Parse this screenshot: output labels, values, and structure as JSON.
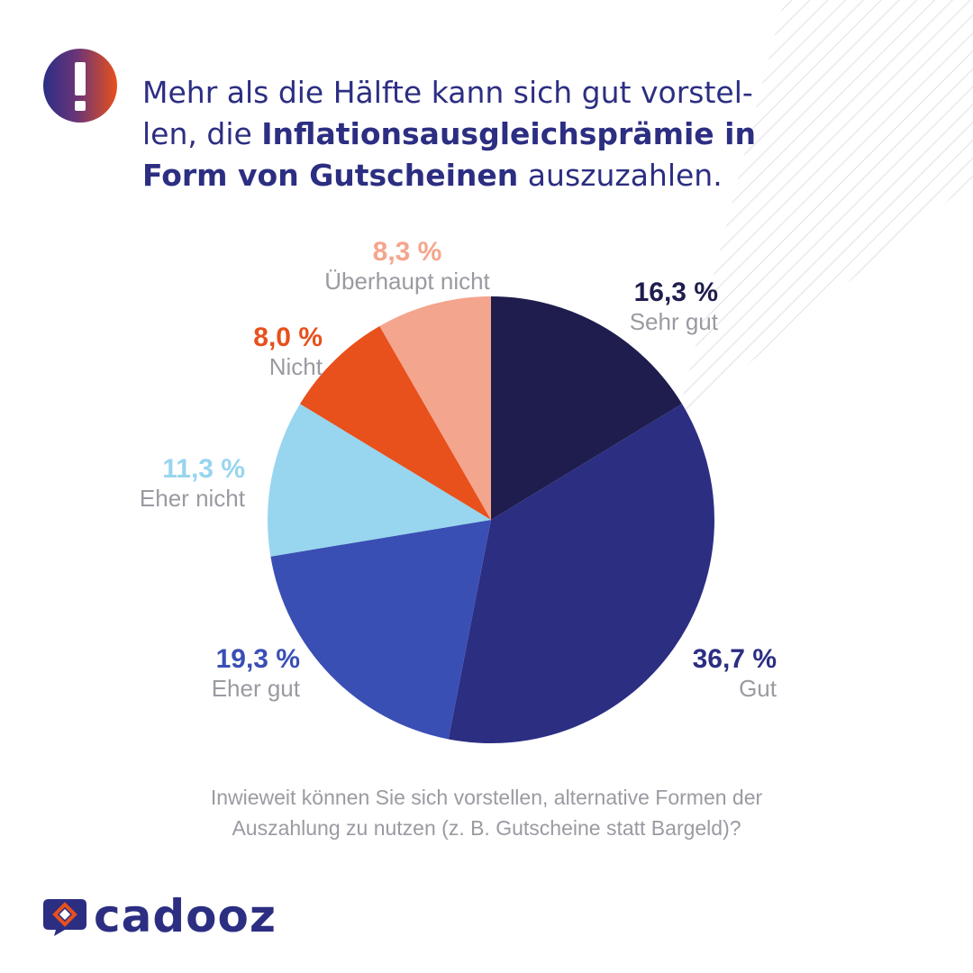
{
  "headline": {
    "part1": "Mehr als die Hälfte kann sich gut vorstel-",
    "part2": "len, die ",
    "bold": "Inflationsausgleichsprämie in Form von Gutscheinen",
    "part3": " auszuzahlen."
  },
  "question": {
    "line1": "Inwieweit können Sie sich vorstellen, alternative Formen der",
    "line2": "Auszahlung zu nutzen (z. B. Gutscheine statt Bargeld)?"
  },
  "brand": {
    "name": "cadooz"
  },
  "icons": {
    "badge": "exclamation-icon",
    "logo": "cadooz-logo-icon"
  },
  "colors": {
    "accent_navy": "#2c2e82",
    "accent_orange": "#e8501c",
    "label_gray": "#9a9aa2"
  },
  "chart_data": {
    "type": "pie",
    "unit": "%",
    "start": "12 o'clock, clockwise",
    "slices": [
      {
        "label": "Sehr gut",
        "value": 16.3,
        "display": "16,3 %",
        "color": "#1e1d4d",
        "value_color": "#1e1d4d"
      },
      {
        "label": "Gut",
        "value": 36.7,
        "display": "36,7 %",
        "color": "#2c2e82",
        "value_color": "#2c2e82"
      },
      {
        "label": "Eher gut",
        "value": 19.3,
        "display": "19,3 %",
        "color": "#3a4fb4",
        "value_color": "#3a4fb4"
      },
      {
        "label": "Eher nicht",
        "value": 11.3,
        "display": "11,3 %",
        "color": "#98d5ee",
        "value_color": "#98d5ee"
      },
      {
        "label": "Nicht",
        "value": 8.0,
        "display": "8,0 %",
        "color": "#e8501c",
        "value_color": "#e8501c"
      },
      {
        "label": "Überhaupt nicht",
        "value": 8.3,
        "display": "8,3 %",
        "color": "#f4a58d",
        "value_color": "#f4a58d"
      }
    ]
  }
}
